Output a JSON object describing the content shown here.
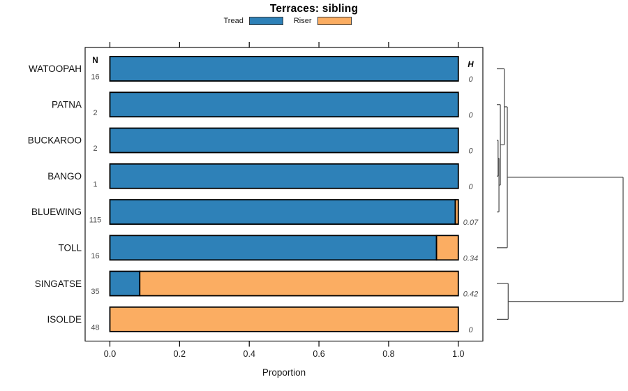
{
  "title": "Terraces: sibling",
  "legend": [
    {
      "label": "Tread",
      "color": "#2E81B8"
    },
    {
      "label": "Riser",
      "color": "#FBAD62"
    }
  ],
  "headers": {
    "n": "N",
    "h": "H"
  },
  "xlabel": "Proportion",
  "chart_data": {
    "type": "bar",
    "orientation": "horizontal",
    "stacked": true,
    "title": "Terraces: sibling",
    "xlabel": "Proportion",
    "xlim": [
      0,
      1
    ],
    "xticks": [
      0,
      0.2,
      0.4,
      0.6,
      0.8,
      1
    ],
    "xtick_labels": [
      "0.0",
      "0.2",
      "0.4",
      "0.6",
      "0.8",
      "1.0"
    ],
    "grid": false,
    "legend_position": "top",
    "categories": [
      "WATOOPAH",
      "PATNA",
      "BUCKAROO",
      "BANGO",
      "BLUEWING",
      "TOLL",
      "SINGATSE",
      "ISOLDE"
    ],
    "n_values": [
      16,
      2,
      2,
      1,
      115,
      16,
      35,
      48
    ],
    "h_values": [
      "0",
      "0",
      "0",
      "0",
      "0.07",
      "0.34",
      "0.42",
      "0"
    ],
    "series": [
      {
        "name": "Tread",
        "color": "#2E81B8",
        "values": [
          1,
          1,
          1,
          1,
          0.9913,
          0.9375,
          0.0857,
          0
        ]
      },
      {
        "name": "Riser",
        "color": "#FBAD62",
        "values": [
          0,
          0,
          0,
          0,
          0.0087,
          0.0625,
          0.9143,
          1
        ]
      }
    ],
    "dendrogram": {
      "side": "right",
      "merges": [
        {
          "a": "BUCKAROO",
          "b": "BANGO",
          "h": 0.01,
          "id": "n1"
        },
        {
          "a": "n1",
          "b": "BLUEWING",
          "h": 0.017,
          "id": "n2"
        },
        {
          "a": "PATNA",
          "b": "n2",
          "h": 0.028,
          "id": "n3"
        },
        {
          "a": "WATOOPAH",
          "b": "n3",
          "h": 0.059,
          "id": "n4"
        },
        {
          "a": "n4",
          "b": "TOLL",
          "h": 0.083,
          "id": "n5"
        },
        {
          "a": "SINGATSE",
          "b": "ISOLDE",
          "h": 0.09,
          "id": "n6"
        },
        {
          "a": "n5",
          "b": "n6",
          "h": 1.0,
          "id": "root"
        }
      ]
    }
  }
}
